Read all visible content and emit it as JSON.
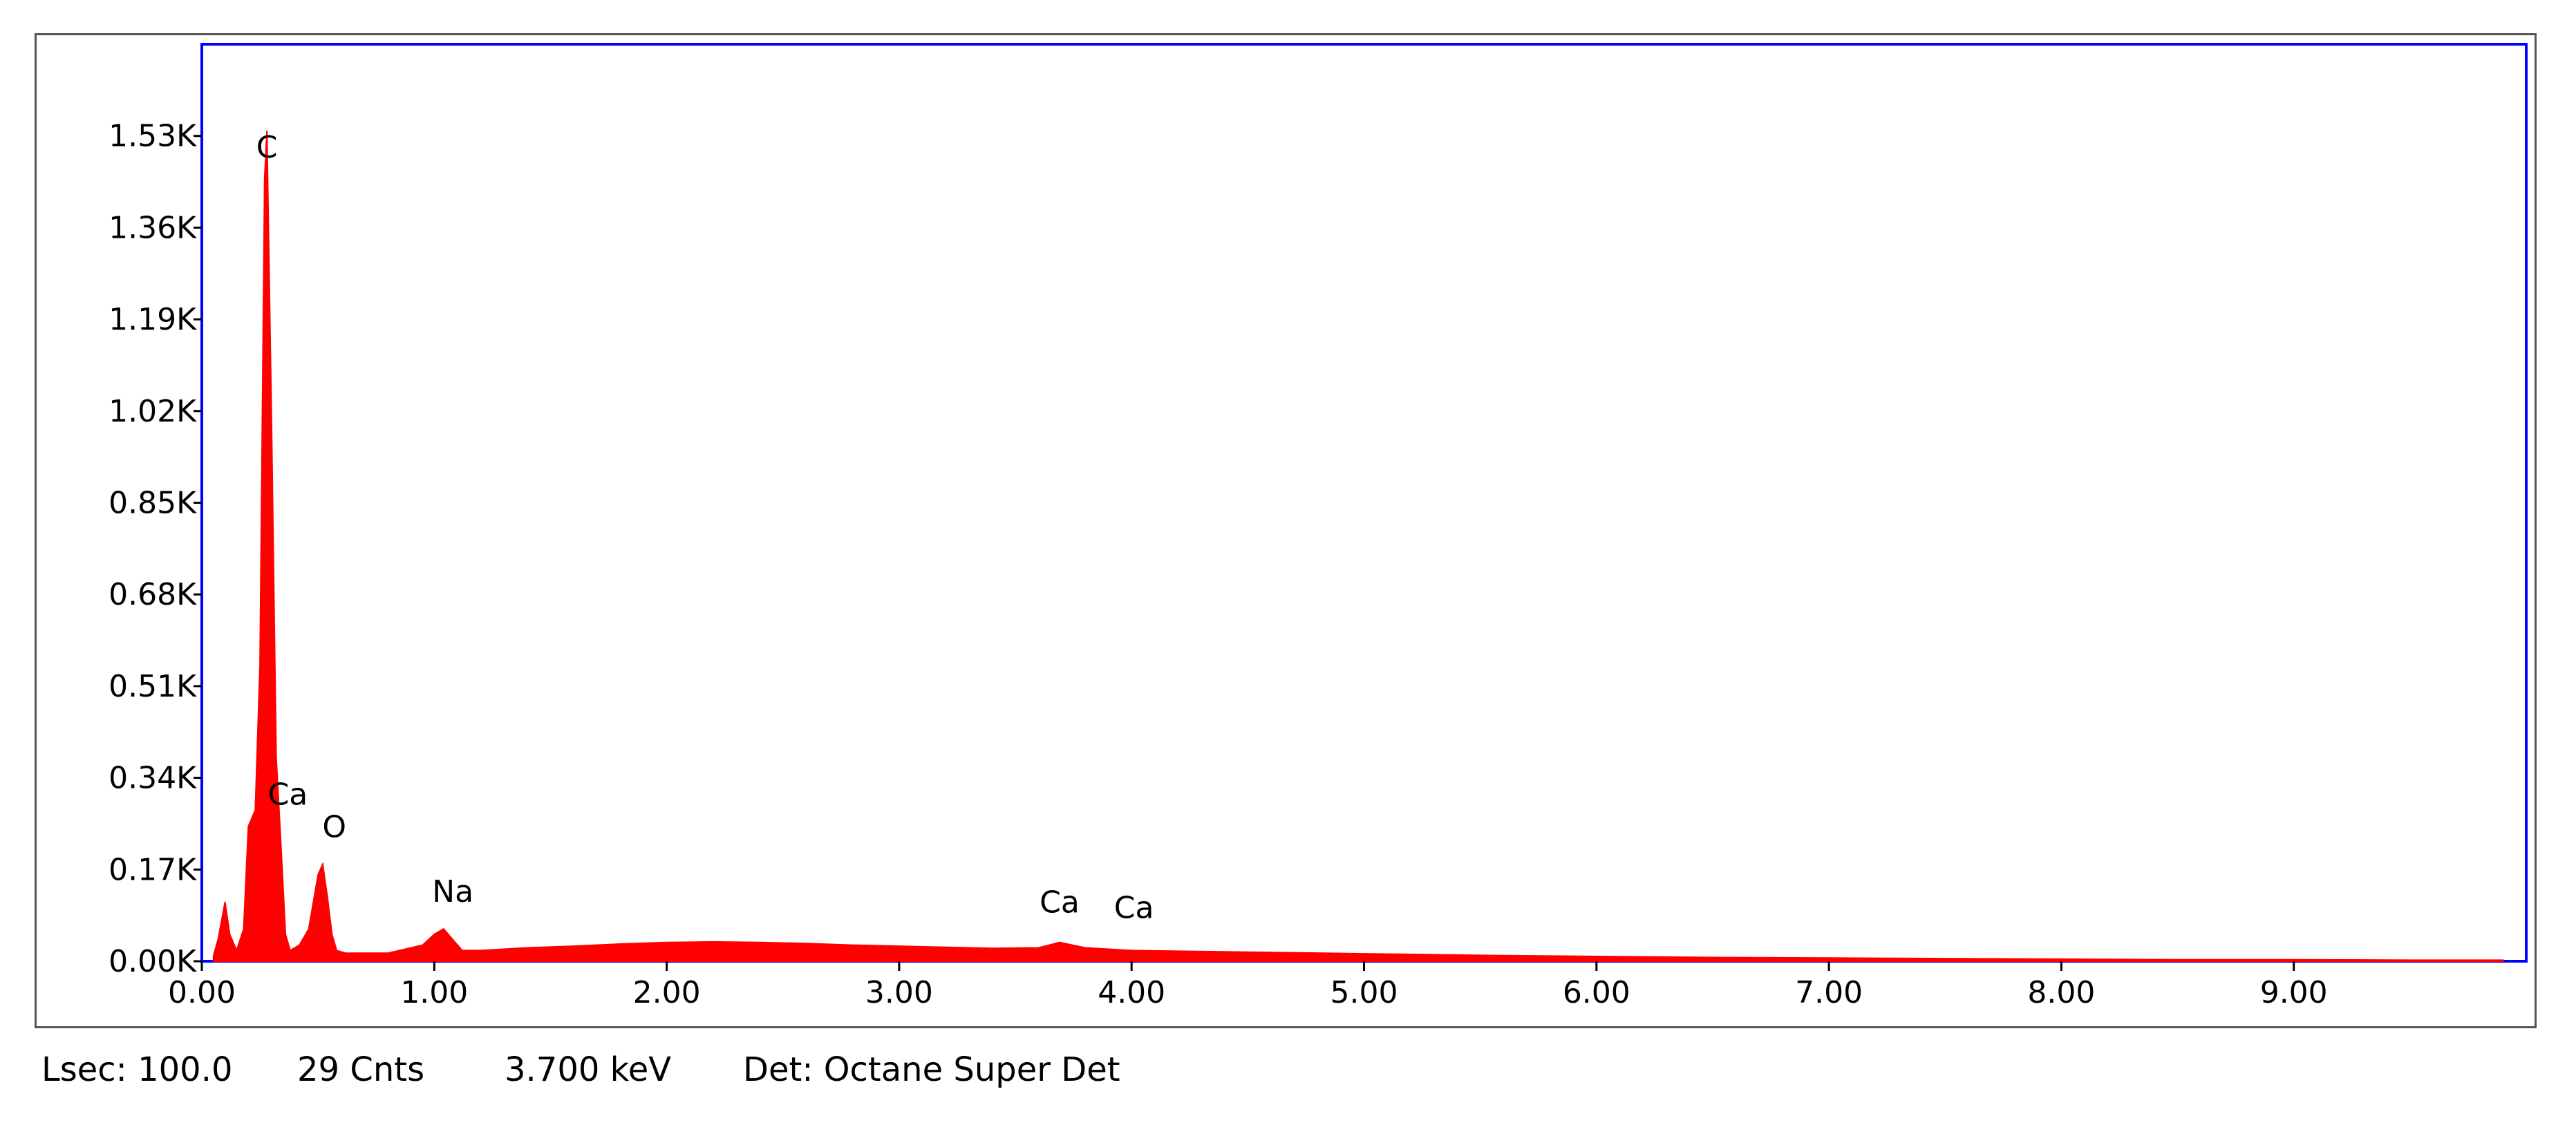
{
  "chart_data": {
    "type": "area",
    "title": "",
    "xlabel": "",
    "ylabel": "",
    "xlim": [
      0,
      10
    ],
    "ylim": [
      0,
      1.7
    ],
    "x_ticks": [
      "0.00",
      "1.00",
      "2.00",
      "3.00",
      "4.00",
      "5.00",
      "6.00",
      "7.00",
      "8.00",
      "9.00"
    ],
    "y_ticks": [
      "0.00K",
      "0.17K",
      "0.34K",
      "0.51K",
      "0.68K",
      "0.85K",
      "1.02K",
      "1.19K",
      "1.36K",
      "1.53K"
    ],
    "series": [
      {
        "color": "#ff0000",
        "x": [
          0.05,
          0.07,
          0.1,
          0.12,
          0.15,
          0.18,
          0.2,
          0.23,
          0.25,
          0.27,
          0.28,
          0.3,
          0.32,
          0.34,
          0.36,
          0.38,
          0.42,
          0.46,
          0.5,
          0.52,
          0.54,
          0.56,
          0.58,
          0.62,
          0.8,
          0.95,
          1.0,
          1.04,
          1.08,
          1.12,
          1.2,
          1.4,
          1.6,
          1.8,
          2.0,
          2.2,
          2.4,
          2.6,
          2.8,
          3.0,
          3.2,
          3.4,
          3.6,
          3.69,
          3.8,
          4.0,
          4.5,
          5.0,
          5.5,
          6.0,
          6.5,
          7.0,
          7.5,
          8.0,
          8.5,
          9.0,
          9.5,
          9.9
        ],
        "y": [
          0.01,
          0.04,
          0.11,
          0.05,
          0.02,
          0.06,
          0.25,
          0.28,
          0.55,
          1.45,
          1.54,
          1.0,
          0.38,
          0.22,
          0.05,
          0.02,
          0.03,
          0.06,
          0.16,
          0.18,
          0.12,
          0.05,
          0.02,
          0.015,
          0.015,
          0.03,
          0.05,
          0.06,
          0.04,
          0.02,
          0.02,
          0.025,
          0.028,
          0.032,
          0.035,
          0.036,
          0.035,
          0.033,
          0.03,
          0.028,
          0.026,
          0.024,
          0.025,
          0.035,
          0.025,
          0.02,
          0.017,
          0.014,
          0.011,
          0.009,
          0.007,
          0.006,
          0.005,
          0.004,
          0.003,
          0.003,
          0.002,
          0.002
        ]
      }
    ],
    "annotations": [
      {
        "text": "C",
        "x": 0.28,
        "y": 1.49
      },
      {
        "text": "Ca",
        "x": 0.37,
        "y": 0.29
      },
      {
        "text": "O",
        "x": 0.57,
        "y": 0.23
      },
      {
        "text": "Na",
        "x": 1.08,
        "y": 0.11
      },
      {
        "text": "Ca",
        "x": 3.69,
        "y": 0.09
      },
      {
        "text": "Ca",
        "x": 4.01,
        "y": 0.08
      }
    ],
    "grid": false,
    "legend": "none"
  },
  "status": {
    "lsec": "Lsec: 100.0",
    "cnts": "29 Cnts",
    "kev": "3.700 keV",
    "det": "Det: Octane Super Det"
  },
  "colors": {
    "spectrum": "#ff0000",
    "plot_border": "#0000ff",
    "frame_border": "#555555"
  }
}
